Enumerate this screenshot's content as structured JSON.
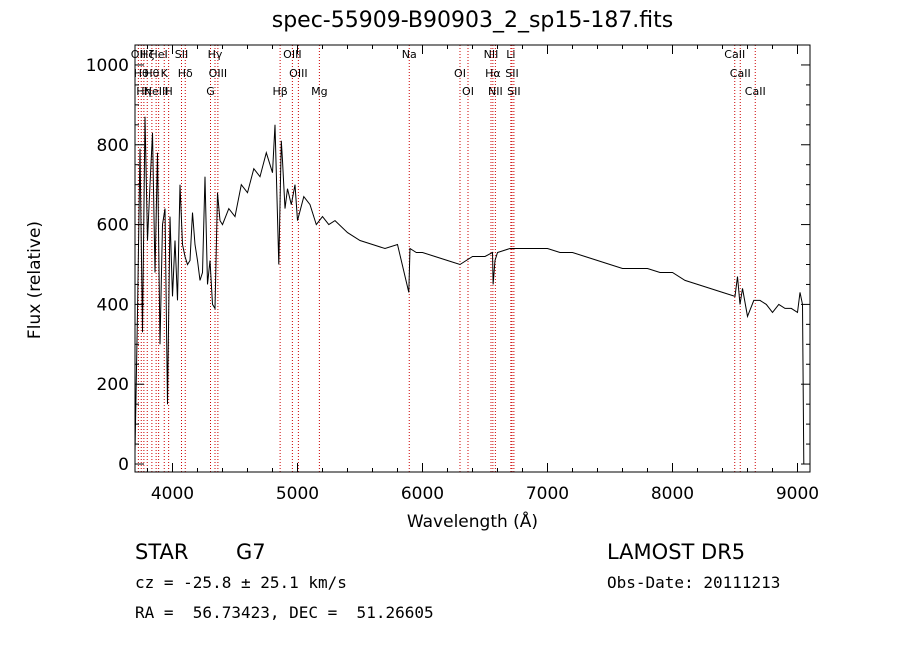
{
  "header": {
    "object_type": "STAR",
    "subclass": "G7",
    "survey": "LAMOST DR5",
    "cz": "cz = -25.8 ± 25.1 km/s",
    "obs_date": "Obs-Date: 20111213",
    "ra_dec": "RA =  56.73423, DEC =  51.26605"
  },
  "chart_data": {
    "type": "line",
    "title": "spec-55909-B90903_2_sp15-187.fits",
    "xlabel": "Wavelength (Å)",
    "ylabel": "Flux (relative)",
    "xlim": [
      3700,
      9100
    ],
    "ylim": [
      -20,
      1050
    ],
    "xticks": [
      4000,
      5000,
      6000,
      7000,
      8000,
      9000
    ],
    "yticks": [
      0,
      200,
      400,
      600,
      800,
      1000
    ],
    "grid": false,
    "line_color": "#000000",
    "marker_color": "#cc0000",
    "series": [
      {
        "x": [
          3700,
          3720,
          3740,
          3760,
          3780,
          3800,
          3820,
          3840,
          3860,
          3880,
          3900,
          3920,
          3940,
          3960,
          3980,
          4000,
          4020,
          4040,
          4060,
          4080,
          4100,
          4120,
          4140,
          4160,
          4180,
          4200,
          4220,
          4240,
          4260,
          4280,
          4300,
          4320,
          4340,
          4360,
          4380,
          4400,
          4450,
          4500,
          4550,
          4600,
          4650,
          4700,
          4750,
          4800,
          4820,
          4850,
          4870,
          4880,
          4900,
          4920,
          4950,
          4980,
          5000,
          5050,
          5100,
          5150,
          5200,
          5250,
          5300,
          5400,
          5500,
          5600,
          5700,
          5800,
          5890,
          5900,
          5950,
          6000,
          6100,
          6200,
          6300,
          6400,
          6500,
          6560,
          6565,
          6580,
          6600,
          6700,
          6800,
          6900,
          7000,
          7100,
          7200,
          7300,
          7400,
          7500,
          7600,
          7700,
          7800,
          7900,
          8000,
          8100,
          8200,
          8300,
          8400,
          8500,
          8520,
          8540,
          8560,
          8600,
          8650,
          8700,
          8750,
          8800,
          8850,
          8900,
          8950,
          9000,
          9020,
          9040,
          9050,
          9060
        ],
        "y": [
          30,
          380,
          790,
          330,
          870,
          560,
          700,
          830,
          480,
          780,
          300,
          600,
          640,
          150,
          620,
          420,
          560,
          410,
          700,
          550,
          520,
          500,
          510,
          630,
          550,
          510,
          460,
          480,
          720,
          450,
          510,
          400,
          390,
          680,
          610,
          600,
          640,
          620,
          700,
          680,
          740,
          720,
          780,
          730,
          850,
          500,
          810,
          760,
          640,
          690,
          650,
          700,
          610,
          670,
          650,
          600,
          620,
          600,
          610,
          580,
          560,
          550,
          540,
          550,
          430,
          540,
          530,
          530,
          520,
          510,
          500,
          520,
          520,
          530,
          450,
          510,
          530,
          540,
          540,
          540,
          540,
          530,
          530,
          520,
          510,
          500,
          490,
          490,
          490,
          480,
          480,
          460,
          450,
          440,
          430,
          420,
          470,
          400,
          440,
          370,
          410,
          410,
          400,
          380,
          400,
          390,
          390,
          380,
          430,
          400,
          0,
          0
        ]
      }
    ],
    "lines": [
      {
        "x": 3727,
        "label": "OII"
      },
      {
        "x": 3750,
        "label": "Hθ"
      },
      {
        "x": 3771,
        "label": "Hη"
      },
      {
        "x": 3798,
        "label": "Hζ"
      },
      {
        "x": 3835,
        "label": "Hθ"
      },
      {
        "x": 3869,
        "label": "NeIII"
      },
      {
        "x": 3889,
        "label": "HeI"
      },
      {
        "x": 3934,
        "label": "K"
      },
      {
        "x": 3969,
        "label": "H"
      },
      {
        "x": 4072,
        "label": "SII"
      },
      {
        "x": 4102,
        "label": "Hδ"
      },
      {
        "x": 4304,
        "label": "G"
      },
      {
        "x": 4340,
        "label": "Hγ"
      },
      {
        "x": 4363,
        "label": "OIII"
      },
      {
        "x": 4861,
        "label": "Hβ"
      },
      {
        "x": 4959,
        "label": "OIII"
      },
      {
        "x": 5007,
        "label": "OIII"
      },
      {
        "x": 5175,
        "label": "Mg"
      },
      {
        "x": 5894,
        "label": "Na"
      },
      {
        "x": 6300,
        "label": "OI"
      },
      {
        "x": 6364,
        "label": "OI"
      },
      {
        "x": 6548,
        "label": "NII"
      },
      {
        "x": 6563,
        "label": "Hα"
      },
      {
        "x": 6583,
        "label": "NII"
      },
      {
        "x": 6707,
        "label": "Li"
      },
      {
        "x": 6716,
        "label": "SII"
      },
      {
        "x": 6731,
        "label": "SII"
      },
      {
        "x": 8498,
        "label": "CaII"
      },
      {
        "x": 8542,
        "label": "CaII"
      },
      {
        "x": 8662,
        "label": "CaII"
      }
    ]
  }
}
